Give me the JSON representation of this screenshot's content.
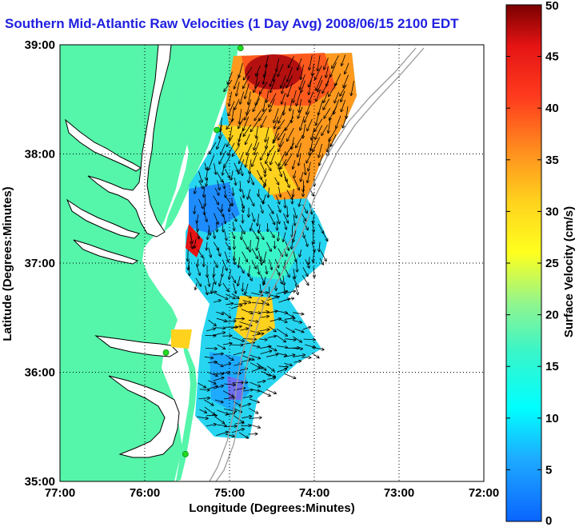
{
  "title": "Southern Mid-Atlantic Raw Velocities (1 Day Avg) 2008/06/15 2100 EDT",
  "colors": {
    "land": "#55f5aa",
    "water": "#ffffff",
    "title": "#1f1fe0",
    "bathymetry": "#9a9a9a",
    "station": "#22dd22"
  },
  "chart_data": {
    "type": "heatmap",
    "xlabel": "Longitude (Degrees:Minutes)",
    "ylabel": "Latitude (Degrees:Minutes)",
    "xlim": [
      -77,
      -72
    ],
    "ylim": [
      35,
      39
    ],
    "x_ticks": [
      {
        "value": -77,
        "label": "77:00"
      },
      {
        "value": -76,
        "label": "76:00"
      },
      {
        "value": -75,
        "label": "75:00"
      },
      {
        "value": -74,
        "label": "74:00"
      },
      {
        "value": -73,
        "label": "73:00"
      },
      {
        "value": -72,
        "label": "72:00"
      }
    ],
    "y_ticks": [
      {
        "value": 35,
        "label": "35:00"
      },
      {
        "value": 36,
        "label": "36:00"
      },
      {
        "value": 37,
        "label": "37:00"
      },
      {
        "value": 38,
        "label": "38:00"
      },
      {
        "value": 39,
        "label": "39:00"
      }
    ],
    "grid": true,
    "colorbar": {
      "label": "Surface Velocity (cm/s)",
      "min": 0,
      "max": 50,
      "ticks": [
        0,
        5,
        10,
        15,
        20,
        25,
        30,
        35,
        40,
        45,
        50
      ]
    },
    "stations": [
      {
        "lon": -74.87,
        "lat": 38.97
      },
      {
        "lon": -75.15,
        "lat": 38.22
      },
      {
        "lon": -75.75,
        "lat": 36.18
      },
      {
        "lon": -75.52,
        "lat": 35.25
      }
    ]
  }
}
